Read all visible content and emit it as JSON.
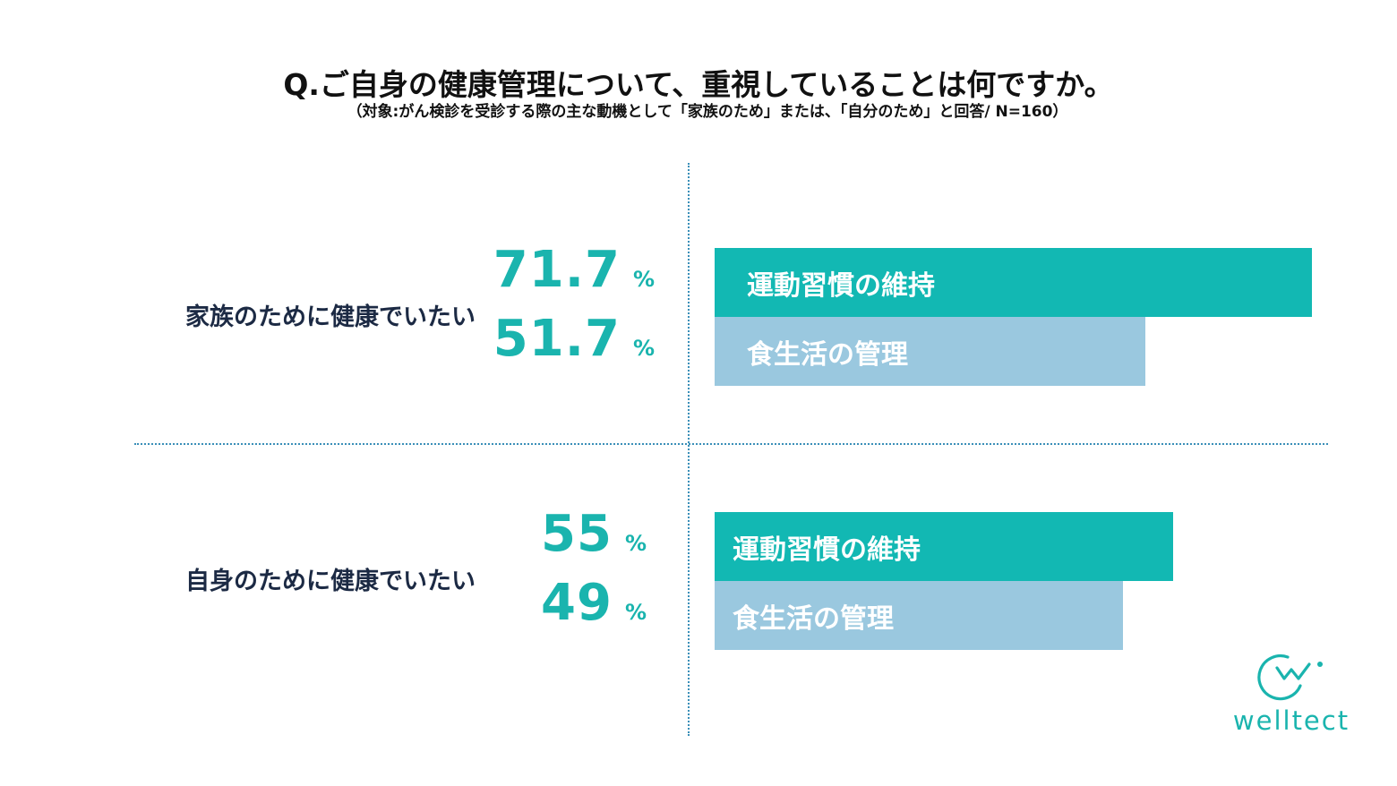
{
  "title": "Q.ご自身の健康管理について、重視していることは何ですか。",
  "subtitle": "（対象:がん検診を受診する際の主な動機として「家族のため」または、「自分のため」と回答/ N=160）",
  "colors": {
    "exercise": "#12b8b3",
    "diet": "#9ac8df",
    "percent": "#1ab4ae",
    "text": "#1c2a44"
  },
  "chart_data": {
    "type": "bar",
    "orientation": "horizontal",
    "unit": "%",
    "groups": [
      {
        "label": "家族のために健康でいたい",
        "bars": [
          {
            "label": "運動習慣の維持",
            "value": 71.7,
            "display": "71.7"
          },
          {
            "label": "食生活の管理",
            "value": 51.7,
            "display": "51.7"
          }
        ]
      },
      {
        "label": "自身のために健康でいたい",
        "bars": [
          {
            "label": "運動習慣の維持",
            "value": 55,
            "display": "55"
          },
          {
            "label": "食生活の管理",
            "value": 49,
            "display": "49"
          }
        ]
      }
    ]
  },
  "logo": {
    "text": "welltect",
    "icon": "welltect-logo-icon"
  }
}
